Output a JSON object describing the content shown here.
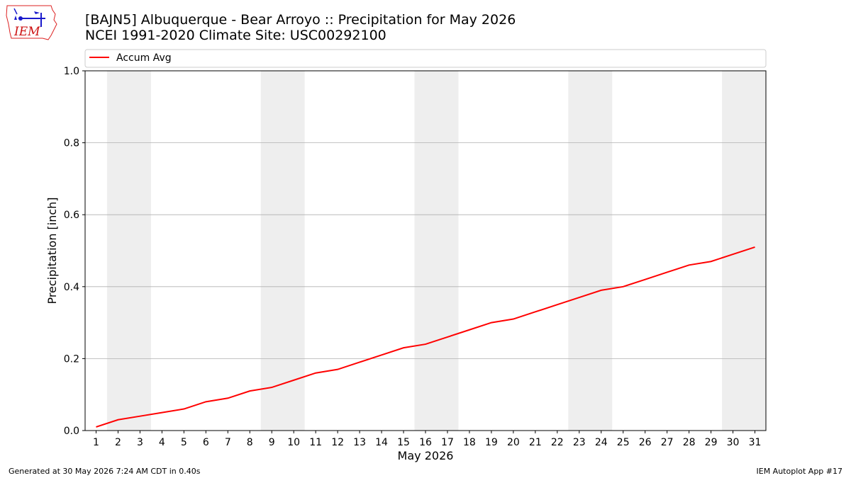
{
  "header": {
    "title": "[BAJN5] Albuquerque - Bear Arroyo :: Precipitation for May 2026",
    "subtitle": "NCEI 1991-2020 Climate Site: USC00292100"
  },
  "logo": {
    "text": "IEM",
    "icon": "iem-iowa-logo-icon"
  },
  "chart_data": {
    "type": "line",
    "xlabel": "May 2026",
    "ylabel": "Precipitation [inch]",
    "xlim": [
      0.5,
      31.5
    ],
    "ylim": [
      0,
      1.0
    ],
    "x": [
      1,
      2,
      3,
      4,
      5,
      6,
      7,
      8,
      9,
      10,
      11,
      12,
      13,
      14,
      15,
      16,
      17,
      18,
      19,
      20,
      21,
      22,
      23,
      24,
      25,
      26,
      27,
      28,
      29,
      30,
      31
    ],
    "x_tick_labels": [
      "1",
      "2",
      "3",
      "4",
      "5",
      "6",
      "7",
      "8",
      "9",
      "10",
      "11",
      "12",
      "13",
      "14",
      "15",
      "16",
      "17",
      "18",
      "19",
      "20",
      "21",
      "22",
      "23",
      "24",
      "25",
      "26",
      "27",
      "28",
      "29",
      "30",
      "31"
    ],
    "y_ticks": [
      0.0,
      0.2,
      0.4,
      0.6,
      0.8,
      1.0
    ],
    "y_tick_labels": [
      "0.0",
      "0.2",
      "0.4",
      "0.6",
      "0.8",
      "1.0"
    ],
    "series": [
      {
        "name": "Accum Avg",
        "color": "#ff0000",
        "values": [
          0.01,
          0.03,
          0.04,
          0.05,
          0.06,
          0.08,
          0.09,
          0.11,
          0.12,
          0.14,
          0.16,
          0.17,
          0.19,
          0.21,
          0.23,
          0.24,
          0.26,
          0.28,
          0.3,
          0.31,
          0.33,
          0.35,
          0.37,
          0.39,
          0.4,
          0.42,
          0.44,
          0.46,
          0.47,
          0.49,
          0.51
        ]
      }
    ],
    "weekend_shading": [
      [
        1.5,
        3.5
      ],
      [
        8.5,
        10.5
      ],
      [
        15.5,
        17.5
      ],
      [
        22.5,
        24.5
      ],
      [
        29.5,
        31.5
      ]
    ],
    "shading_color": "#eeeeee",
    "grid": "y",
    "legend_placement": "top"
  },
  "footer": {
    "left": "Generated at 30 May 2026 7:24 AM CDT in 0.40s",
    "right": "IEM Autoplot App #17"
  }
}
